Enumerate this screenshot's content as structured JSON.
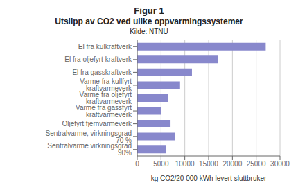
{
  "chart_data": {
    "type": "bar",
    "title": "Figur 1",
    "subtitle": "Utslipp av CO2 ved ulike oppvarmingssystemer",
    "annotations": [
      "Kilde: NTNU"
    ],
    "xlabel": "kg CO2/20 000 kWh levert sluttbruker",
    "orientation": "horizontal",
    "categories": [
      "Sentralvarme virkningsgrad 90%",
      "Sentralvarme, virkningsgrad 70 %",
      "Oljefyrt fjernvarmeverk",
      "Varme fra gassfyrt kraftvarmeverk",
      "Varme fra oljefyrt kraftvarmeverk",
      "Varme fra kullfyrt kraftvarmeverk",
      "El fra gasskraftverk",
      "El fra oljefyrt kraftverk",
      "El fra kulkraftverk"
    ],
    "values": [
      6000,
      8000,
      7000,
      5000,
      6500,
      9000,
      11500,
      17000,
      27000
    ],
    "color": "#8888cc",
    "xlim": [
      0,
      30000
    ],
    "xticks": [
      0,
      5000,
      10000,
      15000,
      20000,
      25000,
      30000
    ],
    "grid": true
  }
}
